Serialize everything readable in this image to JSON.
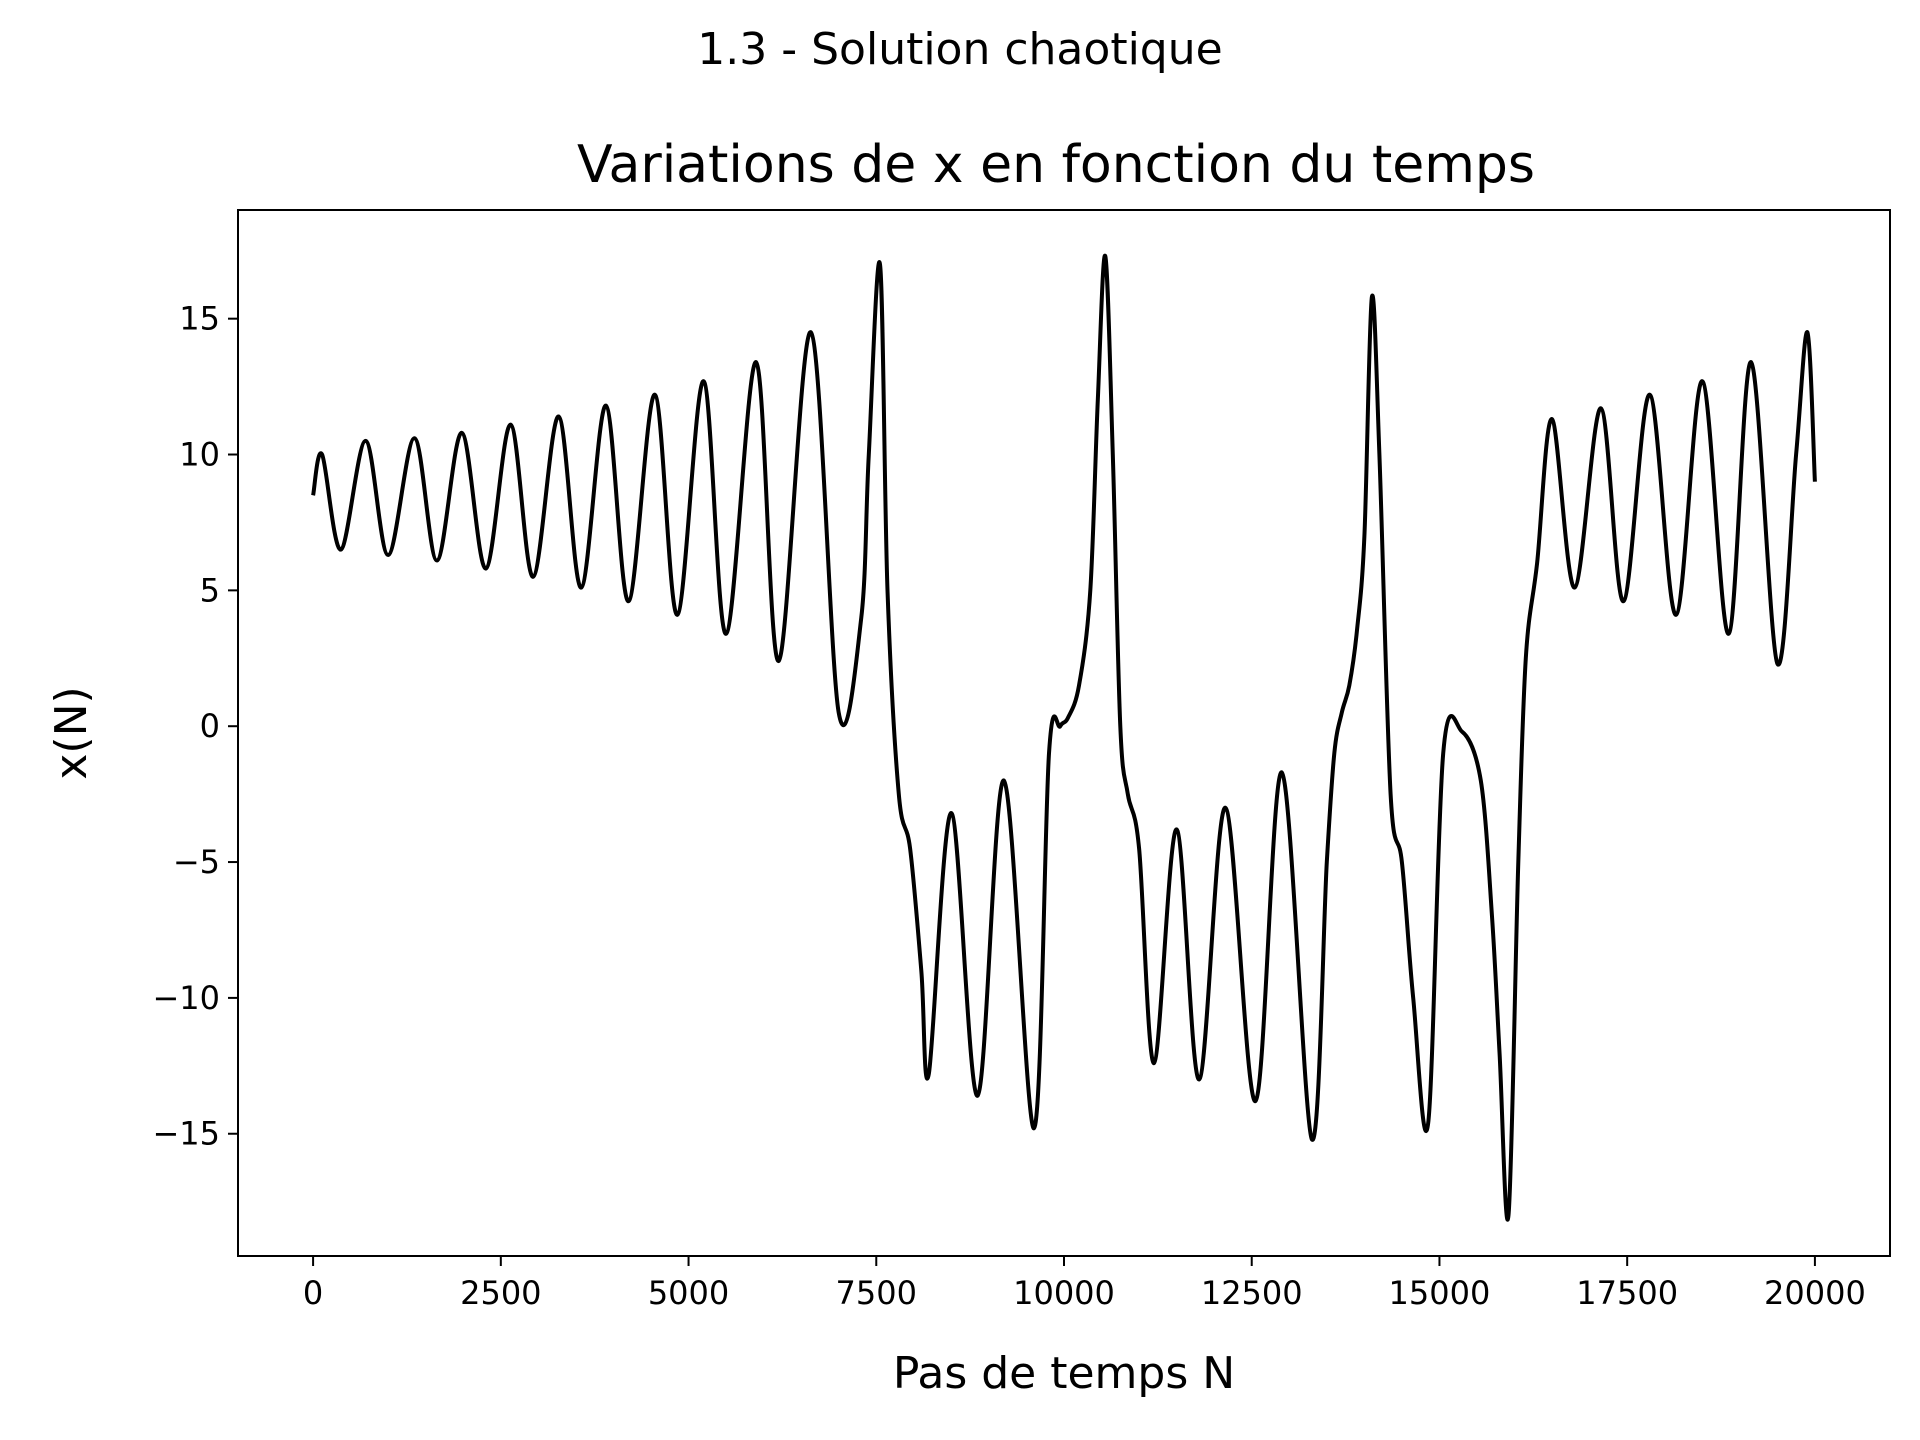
{
  "suptitle": "1.3 - Solution chaotique",
  "chart_data": {
    "type": "line",
    "title": "Variations de x en fonction du temps",
    "xlabel": "Pas de temps N",
    "ylabel": "x(N)",
    "xlim": [
      -1000,
      21000
    ],
    "ylim": [
      -19.5,
      19
    ],
    "x_ticks": [
      0,
      2500,
      5000,
      7500,
      10000,
      12500,
      15000,
      17500,
      20000
    ],
    "x_tick_labels": [
      "0",
      "2500",
      "5000",
      "7500",
      "10000",
      "12500",
      "15000",
      "17500",
      "20000"
    ],
    "y_ticks": [
      -15,
      -10,
      -5,
      0,
      5,
      10,
      15
    ],
    "y_tick_labels": [
      "−15",
      "−10",
      "−5",
      "0",
      "5",
      "10",
      "15"
    ],
    "grid": false,
    "line_color": "#000000",
    "series": [
      {
        "x": [
          0,
          120,
          370,
          700,
          1000,
          1350,
          1650,
          1980,
          2300,
          2630,
          2930,
          3270,
          3570,
          3900,
          4200,
          4550,
          4850,
          5200,
          5500,
          5900,
          6200,
          6630,
          7000,
          7300,
          7400,
          7550,
          7650,
          7800,
          7950,
          8100,
          8200,
          8500,
          8850,
          9200,
          9600,
          9800,
          9950,
          10050,
          10200,
          10350,
          10450,
          10550,
          10650,
          10750,
          10850,
          11000,
          11200,
          11500,
          11800,
          12150,
          12550,
          12900,
          13300,
          13500,
          13600,
          13700,
          13800,
          13900,
          14000,
          14100,
          14200,
          14350,
          14500,
          14650,
          14850,
          15050,
          15300,
          15550,
          15700,
          15800,
          15920,
          16050,
          16150,
          16300,
          16500,
          16800,
          17150,
          17450,
          17800,
          18150,
          18500,
          18850,
          19150,
          19500,
          19750,
          19900,
          20000
        ],
        "values": [
          8.5,
          10.0,
          6.5,
          10.5,
          6.3,
          10.6,
          6.1,
          10.8,
          5.8,
          11.1,
          5.5,
          11.4,
          5.1,
          11.8,
          4.6,
          12.2,
          4.1,
          12.7,
          3.4,
          13.4,
          2.4,
          14.5,
          0.5,
          4.0,
          10.0,
          17.0,
          5.0,
          -2.5,
          -4.5,
          -9.0,
          -12.8,
          -3.2,
          -13.6,
          -2.0,
          -14.8,
          -1.0,
          0.0,
          0.3,
          1.5,
          5.0,
          12.0,
          17.3,
          10.0,
          0.0,
          -2.5,
          -4.5,
          -12.4,
          -3.8,
          -13.0,
          -3.0,
          -13.8,
          -1.7,
          -15.2,
          -5.0,
          -1.0,
          0.5,
          1.5,
          3.5,
          7.0,
          15.8,
          10.0,
          -2.5,
          -5.0,
          -10.0,
          -14.6,
          -1.0,
          -0.2,
          -2.0,
          -7.0,
          -12.0,
          -18.0,
          -5.0,
          2.5,
          6.0,
          11.3,
          5.1,
          11.7,
          4.6,
          12.2,
          4.1,
          12.7,
          3.4,
          13.4,
          2.3,
          10.0,
          14.5,
          9.0
        ]
      }
    ]
  }
}
